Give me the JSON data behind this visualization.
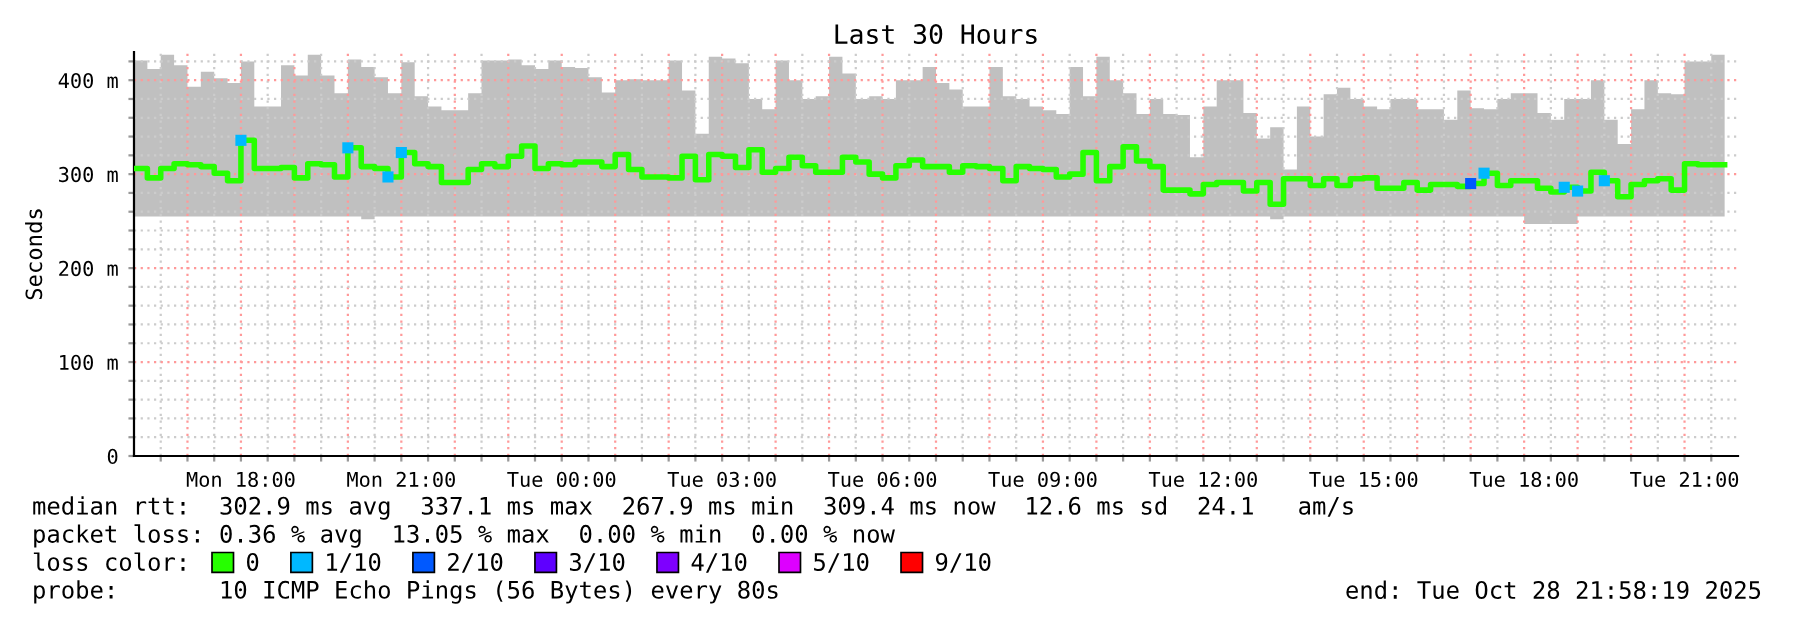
{
  "chart_data": {
    "type": "step",
    "title": "Last 30 Hours",
    "ylabel": "Seconds",
    "legend_title": "loss color:",
    "legend": "bottom",
    "grid": true,
    "xlim": [
      "2025-10-27T16:00",
      "2025-10-28T22:00"
    ],
    "ylim": [
      0,
      430
    ],
    "yticks": [
      0,
      {
        "value": 20,
        "label": null
      },
      {
        "value": 40,
        "label": null
      },
      {
        "value": 60,
        "label": null
      },
      {
        "value": 80,
        "label": null
      },
      {
        "value": 100,
        "label": "100 m"
      },
      {
        "value": 120,
        "label": null
      },
      {
        "value": 140,
        "label": null
      },
      {
        "value": 160,
        "label": null
      },
      {
        "value": 180,
        "label": null
      },
      {
        "value": 200,
        "label": "200 m"
      },
      {
        "value": 220,
        "label": null
      },
      {
        "value": 240,
        "label": null
      },
      {
        "value": 260,
        "label": null
      },
      {
        "value": 280,
        "label": null
      },
      {
        "value": 300,
        "label": "300 m"
      },
      {
        "value": 320,
        "label": null
      },
      {
        "value": 340,
        "label": null
      },
      {
        "value": 360,
        "label": null
      },
      {
        "value": 380,
        "label": null
      },
      {
        "value": 400,
        "label": "400 m"
      },
      {
        "value": 420,
        "label": null
      }
    ],
    "xticks": [
      {
        "value": "2025-10-27T16:30",
        "label": null
      },
      {
        "value": "2025-10-27T17:00",
        "label": null
      },
      {
        "value": "2025-10-27T17:30",
        "label": null
      },
      {
        "value": "2025-10-27T18:00",
        "label": "Mon 18:00"
      },
      {
        "value": "2025-10-27T18:30",
        "label": null
      },
      {
        "value": "2025-10-27T19:00",
        "label": null
      },
      {
        "value": "2025-10-27T19:30",
        "label": null
      },
      {
        "value": "2025-10-27T20:00",
        "label": null
      },
      {
        "value": "2025-10-27T20:30",
        "label": null
      },
      {
        "value": "2025-10-27T21:00",
        "label": "Mon 21:00"
      },
      {
        "value": "2025-10-27T21:30",
        "label": null
      },
      {
        "value": "2025-10-27T22:00",
        "label": null
      },
      {
        "value": "2025-10-27T22:30",
        "label": null
      },
      {
        "value": "2025-10-27T23:00",
        "label": null
      },
      {
        "value": "2025-10-27T23:30",
        "label": null
      },
      {
        "value": "2025-10-28T00:00",
        "label": "Tue 00:00"
      },
      {
        "value": "2025-10-28T00:30",
        "label": null
      },
      {
        "value": "2025-10-28T01:00",
        "label": null
      },
      {
        "value": "2025-10-28T01:30",
        "label": null
      },
      {
        "value": "2025-10-28T02:00",
        "label": null
      },
      {
        "value": "2025-10-28T02:30",
        "label": null
      },
      {
        "value": "2025-10-28T03:00",
        "label": "Tue 03:00"
      },
      {
        "value": "2025-10-28T03:30",
        "label": null
      },
      {
        "value": "2025-10-28T04:00",
        "label": null
      },
      {
        "value": "2025-10-28T04:30",
        "label": null
      },
      {
        "value": "2025-10-28T05:00",
        "label": null
      },
      {
        "value": "2025-10-28T05:30",
        "label": null
      },
      {
        "value": "2025-10-28T06:00",
        "label": "Tue 06:00"
      },
      {
        "value": "2025-10-28T06:30",
        "label": null
      },
      {
        "value": "2025-10-28T07:00",
        "label": null
      },
      {
        "value": "2025-10-28T07:30",
        "label": null
      },
      {
        "value": "2025-10-28T08:00",
        "label": null
      },
      {
        "value": "2025-10-28T08:30",
        "label": null
      },
      {
        "value": "2025-10-28T09:00",
        "label": "Tue 09:00"
      },
      {
        "value": "2025-10-28T09:30",
        "label": null
      },
      {
        "value": "2025-10-28T10:00",
        "label": null
      },
      {
        "value": "2025-10-28T10:30",
        "label": null
      },
      {
        "value": "2025-10-28T11:00",
        "label": null
      },
      {
        "value": "2025-10-28T11:30",
        "label": null
      },
      {
        "value": "2025-10-28T12:00",
        "label": "Tue 12:00"
      },
      {
        "value": "2025-10-28T12:30",
        "label": null
      },
      {
        "value": "2025-10-28T13:00",
        "label": null
      },
      {
        "value": "2025-10-28T13:30",
        "label": null
      },
      {
        "value": "2025-10-28T14:00",
        "label": null
      },
      {
        "value": "2025-10-28T14:30",
        "label": null
      },
      {
        "value": "2025-10-28T15:00",
        "label": "Tue 15:00"
      },
      {
        "value": "2025-10-28T15:30",
        "label": null
      },
      {
        "value": "2025-10-28T16:00",
        "label": null
      },
      {
        "value": "2025-10-28T16:30",
        "label": null
      },
      {
        "value": "2025-10-28T17:00",
        "label": null
      },
      {
        "value": "2025-10-28T17:30",
        "label": null
      },
      {
        "value": "2025-10-28T18:00",
        "label": "Tue 18:00"
      },
      {
        "value": "2025-10-28T18:30",
        "label": null
      },
      {
        "value": "2025-10-28T19:00",
        "label": null
      },
      {
        "value": "2025-10-28T19:30",
        "label": null
      },
      {
        "value": "2025-10-28T20:00",
        "label": null
      },
      {
        "value": "2025-10-28T20:30",
        "label": null
      },
      {
        "value": "2025-10-28T21:00",
        "label": "Tue 21:00"
      },
      {
        "value": "2025-10-28T21:30",
        "label": null
      }
    ],
    "x": [
      "2025-10-27T16:00",
      "2025-10-27T16:15",
      "2025-10-27T16:30",
      "2025-10-27T16:45",
      "2025-10-27T17:00",
      "2025-10-27T17:15",
      "2025-10-27T17:30",
      "2025-10-27T17:45",
      "2025-10-27T18:00",
      "2025-10-27T18:15",
      "2025-10-27T18:30",
      "2025-10-27T18:45",
      "2025-10-27T19:00",
      "2025-10-27T19:15",
      "2025-10-27T19:30",
      "2025-10-27T19:45",
      "2025-10-27T20:00",
      "2025-10-27T20:15",
      "2025-10-27T20:30",
      "2025-10-27T20:45",
      "2025-10-27T21:00",
      "2025-10-27T21:15",
      "2025-10-27T21:30",
      "2025-10-27T21:45",
      "2025-10-27T22:00",
      "2025-10-27T22:15",
      "2025-10-27T22:30",
      "2025-10-27T22:45",
      "2025-10-27T23:00",
      "2025-10-27T23:15",
      "2025-10-27T23:30",
      "2025-10-27T23:45",
      "2025-10-28T00:00",
      "2025-10-28T00:15",
      "2025-10-28T00:30",
      "2025-10-28T00:45",
      "2025-10-28T01:00",
      "2025-10-28T01:15",
      "2025-10-28T01:30",
      "2025-10-28T01:45",
      "2025-10-28T02:00",
      "2025-10-28T02:15",
      "2025-10-28T02:30",
      "2025-10-28T02:45",
      "2025-10-28T03:00",
      "2025-10-28T03:15",
      "2025-10-28T03:30",
      "2025-10-28T03:45",
      "2025-10-28T04:00",
      "2025-10-28T04:15",
      "2025-10-28T04:30",
      "2025-10-28T04:45",
      "2025-10-28T05:00",
      "2025-10-28T05:15",
      "2025-10-28T05:30",
      "2025-10-28T05:45",
      "2025-10-28T06:00",
      "2025-10-28T06:15",
      "2025-10-28T06:30",
      "2025-10-28T06:45",
      "2025-10-28T07:00",
      "2025-10-28T07:15",
      "2025-10-28T07:30",
      "2025-10-28T07:45",
      "2025-10-28T08:00",
      "2025-10-28T08:15",
      "2025-10-28T08:30",
      "2025-10-28T08:45",
      "2025-10-28T09:00",
      "2025-10-28T09:15",
      "2025-10-28T09:30",
      "2025-10-28T09:45",
      "2025-10-28T10:00",
      "2025-10-28T10:15",
      "2025-10-28T10:30",
      "2025-10-28T10:45",
      "2025-10-28T11:00",
      "2025-10-28T11:15",
      "2025-10-28T11:30",
      "2025-10-28T11:45",
      "2025-10-28T12:00",
      "2025-10-28T12:15",
      "2025-10-28T12:30",
      "2025-10-28T12:45",
      "2025-10-28T13:00",
      "2025-10-28T13:15",
      "2025-10-28T13:30",
      "2025-10-28T13:45",
      "2025-10-28T14:00",
      "2025-10-28T14:15",
      "2025-10-28T14:30",
      "2025-10-28T14:45",
      "2025-10-28T15:00",
      "2025-10-28T15:15",
      "2025-10-28T15:30",
      "2025-10-28T15:45",
      "2025-10-28T16:00",
      "2025-10-28T16:15",
      "2025-10-28T16:30",
      "2025-10-28T16:45",
      "2025-10-28T17:00",
      "2025-10-28T17:15",
      "2025-10-28T17:30",
      "2025-10-28T17:45",
      "2025-10-28T18:00",
      "2025-10-28T18:15",
      "2025-10-28T18:30",
      "2025-10-28T18:45",
      "2025-10-28T19:00",
      "2025-10-28T19:15",
      "2025-10-28T19:30",
      "2025-10-28T19:45",
      "2025-10-28T20:00",
      "2025-10-28T20:15",
      "2025-10-28T20:30",
      "2025-10-28T20:45",
      "2025-10-28T21:00",
      "2025-10-28T21:15",
      "2025-10-28T21:30",
      "2025-10-28T21:45"
    ],
    "series": [
      {
        "name": "0",
        "color": "#26ff00",
        "values": [
          306,
          296,
          306,
          311,
          310,
          308,
          301,
          293,
          336,
          306,
          306,
          307,
          296,
          311,
          310,
          297,
          328,
          308,
          306,
          297,
          323,
          311,
          308,
          291,
          291,
          305,
          311,
          308,
          319,
          330,
          306,
          311,
          310,
          313,
          313,
          308,
          321,
          305,
          297,
          297,
          296,
          319,
          294,
          321,
          319,
          307,
          326,
          302,
          306,
          318,
          309,
          302,
          302,
          318,
          313,
          300,
          296,
          309,
          315,
          308,
          308,
          302,
          309,
          308,
          306,
          293,
          308,
          306,
          305,
          297,
          300,
          323,
          293,
          308,
          329,
          314,
          308,
          283,
          283,
          279,
          289,
          291,
          291,
          282,
          291,
          268,
          295,
          295,
          288,
          295,
          288,
          295,
          296,
          285,
          285,
          291,
          283,
          289,
          289,
          287,
          290,
          301,
          288,
          293,
          293,
          285,
          281,
          286,
          282,
          302,
          293,
          276,
          289,
          293,
          295,
          283,
          311,
          310,
          310,
          310
        ],
        "lower": [
          255,
          255,
          255,
          255,
          255,
          255,
          255,
          255,
          255,
          255,
          255,
          255,
          255,
          255,
          255,
          255,
          255,
          252,
          255,
          255,
          255,
          255,
          255,
          255,
          255,
          255,
          255,
          255,
          255,
          255,
          255,
          255,
          255,
          255,
          255,
          255,
          255,
          255,
          255,
          255,
          255,
          255,
          255,
          255,
          255,
          255,
          255,
          255,
          255,
          255,
          255,
          255,
          255,
          255,
          255,
          255,
          255,
          255,
          255,
          255,
          255,
          255,
          255,
          255,
          255,
          255,
          255,
          255,
          255,
          255,
          255,
          255,
          255,
          255,
          255,
          255,
          255,
          255,
          255,
          255,
          255,
          255,
          255,
          255,
          255,
          252,
          255,
          255,
          255,
          255,
          255,
          255,
          255,
          255,
          255,
          255,
          255,
          255,
          255,
          255,
          255,
          255,
          255,
          255,
          247,
          247,
          247,
          247,
          255,
          255,
          255,
          255,
          255,
          255,
          255,
          255,
          255,
          255,
          255,
          255
        ],
        "upper": [
          421,
          412,
          427,
          416,
          393,
          409,
          402,
          397,
          420,
          372,
          372,
          416,
          405,
          427,
          405,
          386,
          422,
          414,
          403,
          386,
          419,
          383,
          372,
          368,
          368,
          386,
          421,
          421,
          422,
          416,
          412,
          421,
          414,
          413,
          403,
          387,
          400,
          401,
          400,
          400,
          421,
          389,
          343,
          425,
          423,
          418,
          380,
          369,
          421,
          400,
          380,
          383,
          425,
          407,
          380,
          383,
          380,
          400,
          400,
          414,
          397,
          390,
          372,
          372,
          414,
          383,
          380,
          372,
          368,
          364,
          414,
          383,
          425,
          400,
          386,
          364,
          380,
          364,
          363,
          318,
          372,
          400,
          400,
          365,
          338,
          350,
          305,
          372,
          340,
          385,
          392,
          380,
          372,
          369,
          380,
          380,
          369,
          369,
          358,
          389,
          370,
          369,
          380,
          386,
          386,
          365,
          358,
          380,
          380,
          400,
          358,
          332,
          369,
          400,
          386,
          385,
          420,
          420,
          427,
          427
        ]
      },
      {
        "name": "1/10",
        "type": "scatter",
        "marker": "square",
        "color": "#00b8ff",
        "values": [
          null,
          null,
          null,
          null,
          null,
          null,
          null,
          null,
          336,
          null,
          null,
          null,
          null,
          null,
          null,
          null,
          328,
          null,
          null,
          297,
          323,
          null,
          null,
          null,
          null,
          null,
          null,
          null,
          null,
          null,
          null,
          null,
          null,
          null,
          null,
          null,
          null,
          null,
          null,
          null,
          null,
          null,
          null,
          null,
          null,
          null,
          null,
          null,
          null,
          null,
          null,
          null,
          null,
          null,
          null,
          null,
          null,
          null,
          null,
          null,
          null,
          null,
          null,
          null,
          null,
          null,
          null,
          null,
          null,
          null,
          null,
          null,
          null,
          null,
          null,
          null,
          null,
          null,
          null,
          null,
          null,
          null,
          null,
          null,
          null,
          null,
          null,
          null,
          null,
          null,
          null,
          null,
          null,
          null,
          null,
          null,
          null,
          null,
          null,
          null,
          null,
          301,
          null,
          null,
          null,
          null,
          null,
          286,
          282,
          null,
          293,
          null,
          null,
          null,
          null,
          null,
          null,
          null,
          null,
          null
        ]
      },
      {
        "name": "2/10",
        "type": "scatter",
        "marker": "square",
        "color": "#0059ff",
        "values": [
          null,
          null,
          null,
          null,
          null,
          null,
          null,
          null,
          null,
          null,
          null,
          null,
          null,
          null,
          null,
          null,
          null,
          null,
          null,
          null,
          null,
          null,
          null,
          null,
          null,
          null,
          null,
          null,
          null,
          null,
          null,
          null,
          null,
          null,
          null,
          null,
          null,
          null,
          null,
          null,
          null,
          null,
          null,
          null,
          null,
          null,
          null,
          null,
          null,
          null,
          null,
          null,
          null,
          null,
          null,
          null,
          null,
          null,
          null,
          null,
          null,
          null,
          null,
          null,
          null,
          null,
          null,
          null,
          null,
          null,
          null,
          null,
          null,
          null,
          null,
          null,
          null,
          null,
          null,
          null,
          null,
          null,
          null,
          null,
          null,
          null,
          null,
          null,
          null,
          null,
          null,
          null,
          null,
          null,
          null,
          null,
          null,
          null,
          null,
          null,
          290,
          null,
          null,
          null,
          null,
          null,
          null,
          null,
          null,
          null,
          null,
          null,
          null,
          null,
          null,
          null,
          null,
          null,
          null,
          null
        ]
      },
      {
        "name": "3/10",
        "color": "#5e00ff",
        "values": [
          null,
          null,
          null,
          null,
          null,
          null,
          null,
          null,
          null,
          null,
          null,
          null,
          null,
          null,
          null,
          null,
          null,
          null,
          null,
          null,
          null,
          null,
          null,
          null,
          null,
          null,
          null,
          null,
          null,
          null,
          null,
          null,
          null,
          null,
          null,
          null,
          null,
          null,
          null,
          null,
          null,
          null,
          null,
          null,
          null,
          null,
          null,
          null,
          null,
          null,
          null,
          null,
          null,
          null,
          null,
          null,
          null,
          null,
          null,
          null,
          null,
          null,
          null,
          null,
          null,
          null,
          null,
          null,
          null,
          null,
          null,
          null,
          null,
          null,
          null,
          null,
          null,
          null,
          null,
          null,
          null,
          null,
          null,
          null,
          null,
          null,
          null,
          null,
          null,
          null,
          null,
          null,
          null,
          null,
          null,
          null,
          null,
          null,
          null,
          null,
          null,
          null,
          null,
          null,
          null,
          null,
          null,
          null,
          null,
          null,
          null,
          null,
          null,
          null,
          null,
          null,
          null,
          null,
          null,
          null
        ]
      },
      {
        "name": "4/10",
        "color": "#7e00ff",
        "values": [
          null,
          null,
          null,
          null,
          null,
          null,
          null,
          null,
          null,
          null,
          null,
          null,
          null,
          null,
          null,
          null,
          null,
          null,
          null,
          null,
          null,
          null,
          null,
          null,
          null,
          null,
          null,
          null,
          null,
          null,
          null,
          null,
          null,
          null,
          null,
          null,
          null,
          null,
          null,
          null,
          null,
          null,
          null,
          null,
          null,
          null,
          null,
          null,
          null,
          null,
          null,
          null,
          null,
          null,
          null,
          null,
          null,
          null,
          null,
          null,
          null,
          null,
          null,
          null,
          null,
          null,
          null,
          null,
          null,
          null,
          null,
          null,
          null,
          null,
          null,
          null,
          null,
          null,
          null,
          null,
          null,
          null,
          null,
          null,
          null,
          null,
          null,
          null,
          null,
          null,
          null,
          null,
          null,
          null,
          null,
          null,
          null,
          null,
          null,
          null,
          null,
          null,
          null,
          null,
          null,
          null,
          null,
          null,
          null,
          null,
          null,
          null,
          null,
          null,
          null,
          null,
          null,
          null,
          null,
          null
        ]
      },
      {
        "name": "5/10",
        "color": "#dd00ff",
        "values": [
          null,
          null,
          null,
          null,
          null,
          null,
          null,
          null,
          null,
          null,
          null,
          null,
          null,
          null,
          null,
          null,
          null,
          null,
          null,
          null,
          null,
          null,
          null,
          null,
          null,
          null,
          null,
          null,
          null,
          null,
          null,
          null,
          null,
          null,
          null,
          null,
          null,
          null,
          null,
          null,
          null,
          null,
          null,
          null,
          null,
          null,
          null,
          null,
          null,
          null,
          null,
          null,
          null,
          null,
          null,
          null,
          null,
          null,
          null,
          null,
          null,
          null,
          null,
          null,
          null,
          null,
          null,
          null,
          null,
          null,
          null,
          null,
          null,
          null,
          null,
          null,
          null,
          null,
          null,
          null,
          null,
          null,
          null,
          null,
          null,
          null,
          null,
          null,
          null,
          null,
          null,
          null,
          null,
          null,
          null,
          null,
          null,
          null,
          null,
          null,
          null,
          null,
          null,
          null,
          null,
          null,
          null,
          null,
          null,
          null,
          null,
          null,
          null,
          null,
          null,
          null,
          null,
          null,
          null,
          null
        ]
      },
      {
        "name": "9/10",
        "color": "#ff0000",
        "values": [
          null,
          null,
          null,
          null,
          null,
          null,
          null,
          null,
          null,
          null,
          null,
          null,
          null,
          null,
          null,
          null,
          null,
          null,
          null,
          null,
          null,
          null,
          null,
          null,
          null,
          null,
          null,
          null,
          null,
          null,
          null,
          null,
          null,
          null,
          null,
          null,
          null,
          null,
          null,
          null,
          null,
          null,
          null,
          null,
          null,
          null,
          null,
          null,
          null,
          null,
          null,
          null,
          null,
          null,
          null,
          null,
          null,
          null,
          null,
          null,
          null,
          null,
          null,
          null,
          null,
          null,
          null,
          null,
          null,
          null,
          null,
          null,
          null,
          null,
          null,
          null,
          null,
          null,
          null,
          null,
          null,
          null,
          null,
          null,
          null,
          null,
          null,
          null,
          null,
          null,
          null,
          null,
          null,
          null,
          null,
          null,
          null,
          null,
          null,
          null,
          null,
          null,
          null,
          null,
          null,
          null,
          null,
          null,
          null,
          null,
          null,
          null,
          null,
          null,
          null,
          null,
          null,
          null,
          null,
          null
        ]
      }
    ],
    "annotations": [
      "median rtt:  302.9 ms avg  337.1 ms max  267.9 ms min  309.4 ms now  12.6 ms sd  24.1   am/s",
      "packet loss: 0.36 % avg  13.05 % max  0.00 % min  0.00 % now",
      "probe:       10 ICMP Echo Pings (56 Bytes) every 80s",
      "end: Tue Oct 28 21:58:19 2025"
    ]
  }
}
